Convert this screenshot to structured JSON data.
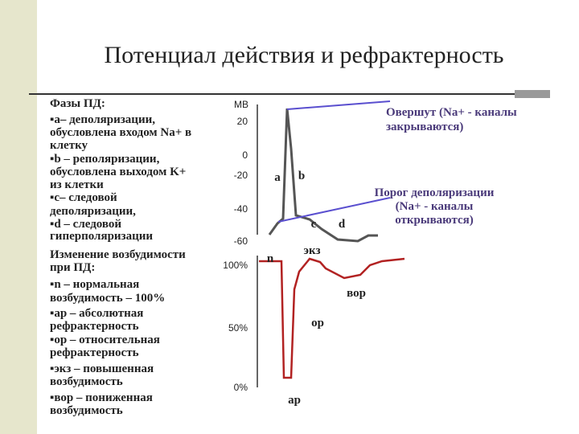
{
  "title": "Потенциал действия и рефрактерность",
  "left_column": {
    "lines": [
      "Фазы ПД:",
      "▪a– деполяризации,",
      "обусловлена входом Na+ в",
      "клетку",
      "▪b – реполяризации,",
      "обусловлена выходом K+",
      "из клетки",
      "▪c– следовой",
      "деполяризации,",
      "▪d – следовой",
      "гиперполяризации",
      "Изменение возбудимости",
      "при ПД:",
      "▪n – нормальная",
      "возбудимость – 100%",
      "▪ар – абсолютная",
      "рефрактерность",
      "▪ор – относительная",
      "рефрактерность",
      "▪экз – повышенная",
      "возбудимость",
      "▪вор – пониженная",
      "возбудимость"
    ]
  },
  "potential_graph": {
    "unit": "МВ",
    "ticks": [
      "20",
      "0",
      "-20",
      "-40",
      "-60"
    ],
    "phase_labels": [
      "a",
      "b",
      "c",
      "d"
    ],
    "overshoot_note": [
      "Овершут (Na+ - каналы",
      "закрываются)"
    ],
    "threshold_note": [
      "Порог деполяризации",
      "(Na+ - каналы",
      "открываются)"
    ]
  },
  "excitability_graph": {
    "ticks": [
      "100%",
      "50%",
      "0%"
    ],
    "phase_labels": [
      "n",
      "экз",
      "вор",
      "ор",
      "ар"
    ]
  }
}
